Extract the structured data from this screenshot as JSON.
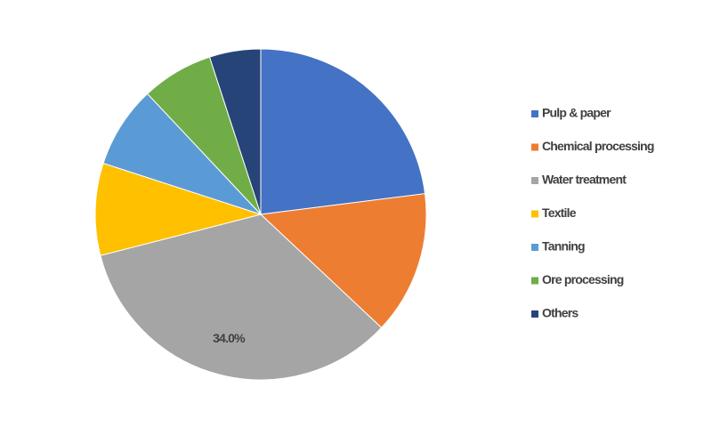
{
  "chart_data": {
    "type": "pie",
    "categories": [
      "Pulp & paper",
      "Chemical processing",
      "Water treatment",
      "Textile",
      "Tanning",
      "Ore processing",
      "Others"
    ],
    "values": [
      23,
      14,
      34,
      9,
      8,
      7,
      5
    ],
    "value_labels": [
      null,
      null,
      "34.0%",
      null,
      null,
      null,
      null
    ],
    "colors": [
      "#4472c4",
      "#ed7d31",
      "#a5a5a5",
      "#ffc000",
      "#5b9bd5",
      "#70ad47",
      "#264478"
    ],
    "legend": "right"
  }
}
